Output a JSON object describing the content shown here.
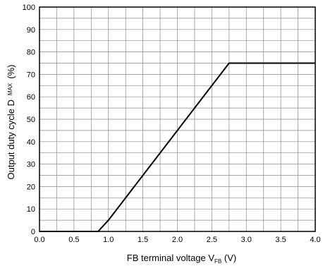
{
  "chart_data": {
    "type": "line",
    "xlabel": {
      "main": "FB terminal voltage V",
      "sub": "FB",
      "suffix": " (V)"
    },
    "ylabel": {
      "main": "Output duty cycle D",
      "sub": "MAX",
      "suffix": "(%)"
    },
    "xlim": [
      0.0,
      4.0
    ],
    "ylim": [
      0,
      100
    ],
    "x_ticks": [
      "0.0",
      "0.5",
      "1.0",
      "1.5",
      "2.0",
      "2.5",
      "3.0",
      "3.5",
      "4.0"
    ],
    "y_ticks": [
      "0",
      "10",
      "20",
      "30",
      "40",
      "50",
      "60",
      "70",
      "80",
      "90",
      "100"
    ],
    "grid": true,
    "series": [
      {
        "x": [
          0.0,
          0.85,
          1.0,
          2.75,
          4.0
        ],
        "y": [
          0,
          0,
          5,
          75,
          75
        ],
        "color": "#000000"
      }
    ]
  }
}
